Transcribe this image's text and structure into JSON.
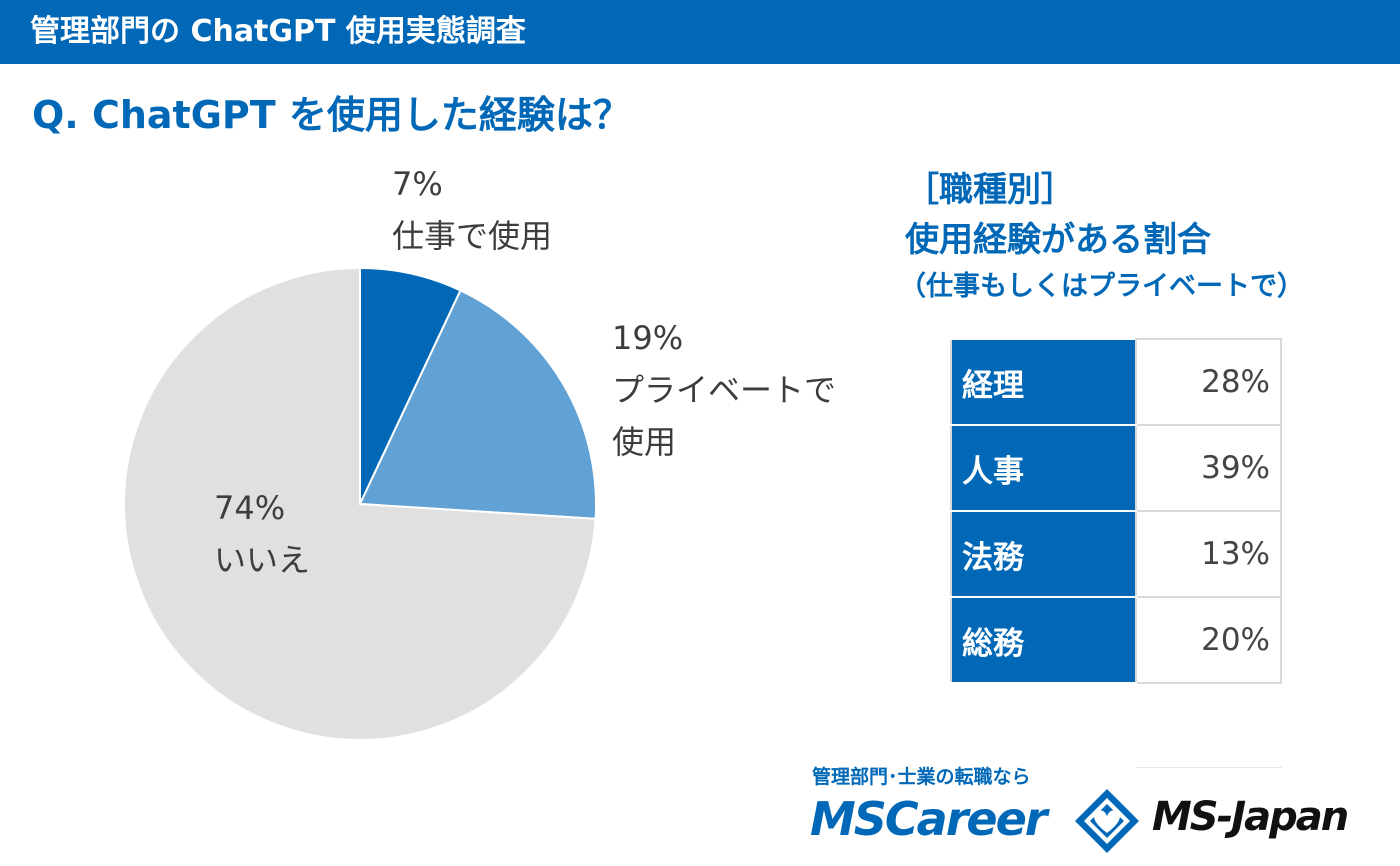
{
  "header": {
    "title": "管理部門の ChatGPT 使用実態調査"
  },
  "question": "Q. ChatGPT を使用した経験は？",
  "chart_data": {
    "type": "pie",
    "slices": [
      {
        "label": [
          "7%",
          "仕事で使用"
        ],
        "value": 7,
        "color": "#0068b7"
      },
      {
        "label": [
          "19%",
          "プライベートで",
          "使用"
        ],
        "value": 19,
        "color": "#62a1d3"
      },
      {
        "label": [
          "74%",
          "いいえ"
        ],
        "value": 74,
        "color": "#e0e0e0"
      }
    ]
  },
  "side_panel": {
    "title_line1": "［職種別］",
    "title_line2": "使用経験がある割合",
    "subtitle": "（仕事もしくはプライベートで）",
    "rows": [
      {
        "role": "経理",
        "percent": "28%"
      },
      {
        "role": "人事",
        "percent": "39%"
      },
      {
        "role": "法務",
        "percent": "13%"
      },
      {
        "role": "総務",
        "percent": "20%"
      }
    ]
  },
  "footer": {
    "tagline": "管理部門･士業の転職なら",
    "logo_left": "MSCareer",
    "logo_right": "MS-Japan",
    "emblem": "diamond-heart-emblem-icon"
  }
}
